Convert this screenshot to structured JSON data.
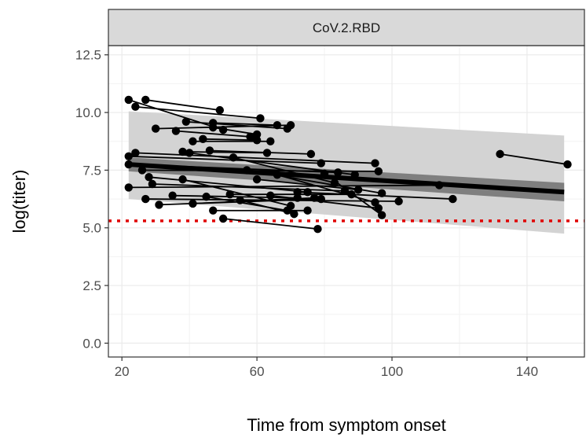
{
  "chart_data": {
    "type": "line",
    "facet_label": "CoV.2.RBD",
    "xlabel": "Time from symptom onset",
    "ylabel": "log(titer)",
    "xlim": [
      16,
      157
    ],
    "ylim": [
      -0.6,
      12.9
    ],
    "x_ticks": [
      20,
      60,
      100,
      140
    ],
    "y_ticks": [
      0.0,
      2.5,
      5.0,
      7.5,
      10.0,
      12.5
    ],
    "y_tick_labels": [
      "0.0",
      "2.5",
      "5.0",
      "7.5",
      "10.0",
      "12.5"
    ],
    "grid": true,
    "threshold": {
      "y": 5.3,
      "color": "#e00000",
      "style": "dotted"
    },
    "fit_line": {
      "x": [
        22,
        151
      ],
      "y": [
        7.75,
        6.55
      ],
      "color": "#000000"
    },
    "confidence_band": {
      "x": [
        22,
        151
      ],
      "lower": [
        7.45,
        6.15
      ],
      "upper": [
        8.05,
        6.95
      ],
      "color": "#7f7f7f"
    },
    "prediction_band": {
      "x": [
        22,
        151
      ],
      "lower": [
        6.25,
        4.75
      ],
      "upper": [
        10.05,
        9.0
      ],
      "color": "#d3d3d3"
    },
    "series": [
      {
        "x": [
          22,
          50
        ],
        "y": [
          10.55,
          9.25
        ]
      },
      {
        "x": [
          27,
          49
        ],
        "y": [
          10.55,
          10.1
        ]
      },
      {
        "x": [
          24,
          61
        ],
        "y": [
          10.25,
          9.75
        ]
      },
      {
        "x": [
          30,
          70
        ],
        "y": [
          9.3,
          9.45
        ]
      },
      {
        "x": [
          36,
          58
        ],
        "y": [
          9.2,
          8.95
        ]
      },
      {
        "x": [
          39,
          69
        ],
        "y": [
          9.6,
          9.3
        ]
      },
      {
        "x": [
          47,
          66
        ],
        "y": [
          9.55,
          9.45
        ]
      },
      {
        "x": [
          47,
          60
        ],
        "y": [
          9.35,
          9.05
        ]
      },
      {
        "x": [
          41,
          64
        ],
        "y": [
          8.75,
          8.75
        ]
      },
      {
        "x": [
          44,
          60
        ],
        "y": [
          8.85,
          8.8
        ]
      },
      {
        "x": [
          38,
          63
        ],
        "y": [
          8.3,
          8.25
        ]
      },
      {
        "x": [
          46,
          76
        ],
        "y": [
          8.35,
          8.2
        ]
      },
      {
        "x": [
          22,
          79
        ],
        "y": [
          8.1,
          7.8
        ]
      },
      {
        "x": [
          24,
          95
        ],
        "y": [
          8.25,
          7.8
        ]
      },
      {
        "x": [
          22,
          84
        ],
        "y": [
          7.75,
          7.4
        ]
      },
      {
        "x": [
          26,
          96
        ],
        "y": [
          7.5,
          7.45
        ]
      },
      {
        "x": [
          40,
          89
        ],
        "y": [
          8.25,
          7.3
        ]
      },
      {
        "x": [
          53,
          83
        ],
        "y": [
          8.05,
          6.95
        ]
      },
      {
        "x": [
          57,
          97
        ],
        "y": [
          7.5,
          6.5
        ]
      },
      {
        "x": [
          22,
          114
        ],
        "y": [
          6.75,
          6.85
        ]
      },
      {
        "x": [
          27,
          102
        ],
        "y": [
          6.25,
          6.15
        ]
      },
      {
        "x": [
          31,
          79
        ],
        "y": [
          6.0,
          6.25
        ]
      },
      {
        "x": [
          28,
          75
        ],
        "y": [
          7.2,
          6.55
        ]
      },
      {
        "x": [
          29,
          86
        ],
        "y": [
          6.9,
          6.6
        ]
      },
      {
        "x": [
          35,
          72
        ],
        "y": [
          6.4,
          6.3
        ]
      },
      {
        "x": [
          38,
          70
        ],
        "y": [
          7.1,
          5.95
        ]
      },
      {
        "x": [
          41,
          77
        ],
        "y": [
          6.05,
          6.3
        ]
      },
      {
        "x": [
          45,
          69
        ],
        "y": [
          6.35,
          5.75
        ]
      },
      {
        "x": [
          47,
          75
        ],
        "y": [
          5.75,
          5.75
        ]
      },
      {
        "x": [
          50,
          78
        ],
        "y": [
          5.4,
          4.95
        ]
      },
      {
        "x": [
          52,
          88
        ],
        "y": [
          6.45,
          6.45
        ]
      },
      {
        "x": [
          55,
          71
        ],
        "y": [
          6.2,
          5.6
        ]
      },
      {
        "x": [
          60,
          90
        ],
        "y": [
          7.1,
          6.65
        ]
      },
      {
        "x": [
          64,
          96
        ],
        "y": [
          6.4,
          5.85
        ]
      },
      {
        "x": [
          66,
          95
        ],
        "y": [
          7.3,
          6.1
        ]
      },
      {
        "x": [
          72,
          118
        ],
        "y": [
          6.55,
          6.25
        ]
      },
      {
        "x": [
          80,
          97
        ],
        "y": [
          7.35,
          5.55
        ]
      },
      {
        "x": [
          132,
          152
        ],
        "y": [
          8.2,
          7.75
        ]
      }
    ]
  }
}
